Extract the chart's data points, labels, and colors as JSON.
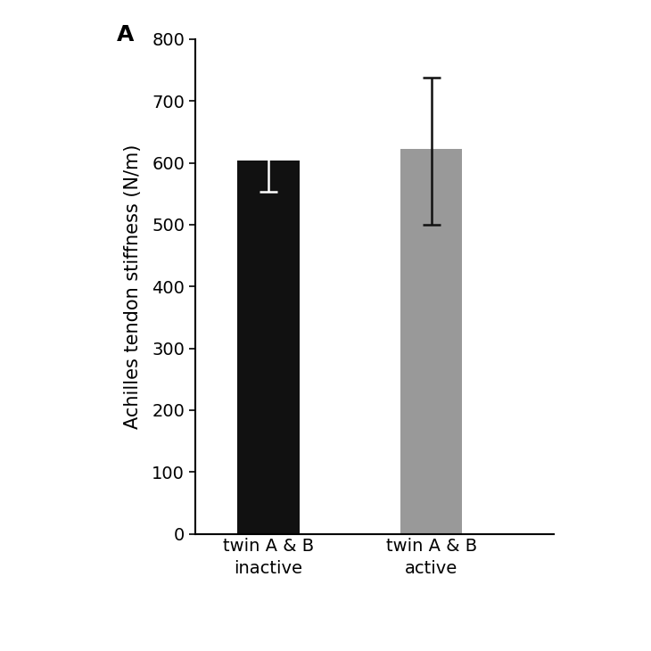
{
  "categories": [
    "twin A & B\ninactive",
    "twin A & B\nactive"
  ],
  "values": [
    603,
    622
  ],
  "errors_upper": [
    50,
    115
  ],
  "errors_lower": [
    50,
    122
  ],
  "bar_colors": [
    "#111111",
    "#999999"
  ],
  "bar_width": 0.38,
  "bar_positions": [
    1.0,
    2.0
  ],
  "ylim": [
    0,
    800
  ],
  "yticks": [
    0,
    100,
    200,
    300,
    400,
    500,
    600,
    700,
    800
  ],
  "ylabel": "Achilles tendon stiffness (N/m)",
  "ylabel_fontsize": 15,
  "tick_fontsize": 14,
  "xlabel_fontsize": 14,
  "panel_label": "A",
  "panel_label_fontsize": 18,
  "error_capsize": 7,
  "error_linewidth": 1.8,
  "background_color": "#ffffff",
  "inactive_errorbar_color": "#ffffff",
  "active_errorbar_color": "#111111",
  "xlim": [
    0.55,
    2.75
  ]
}
